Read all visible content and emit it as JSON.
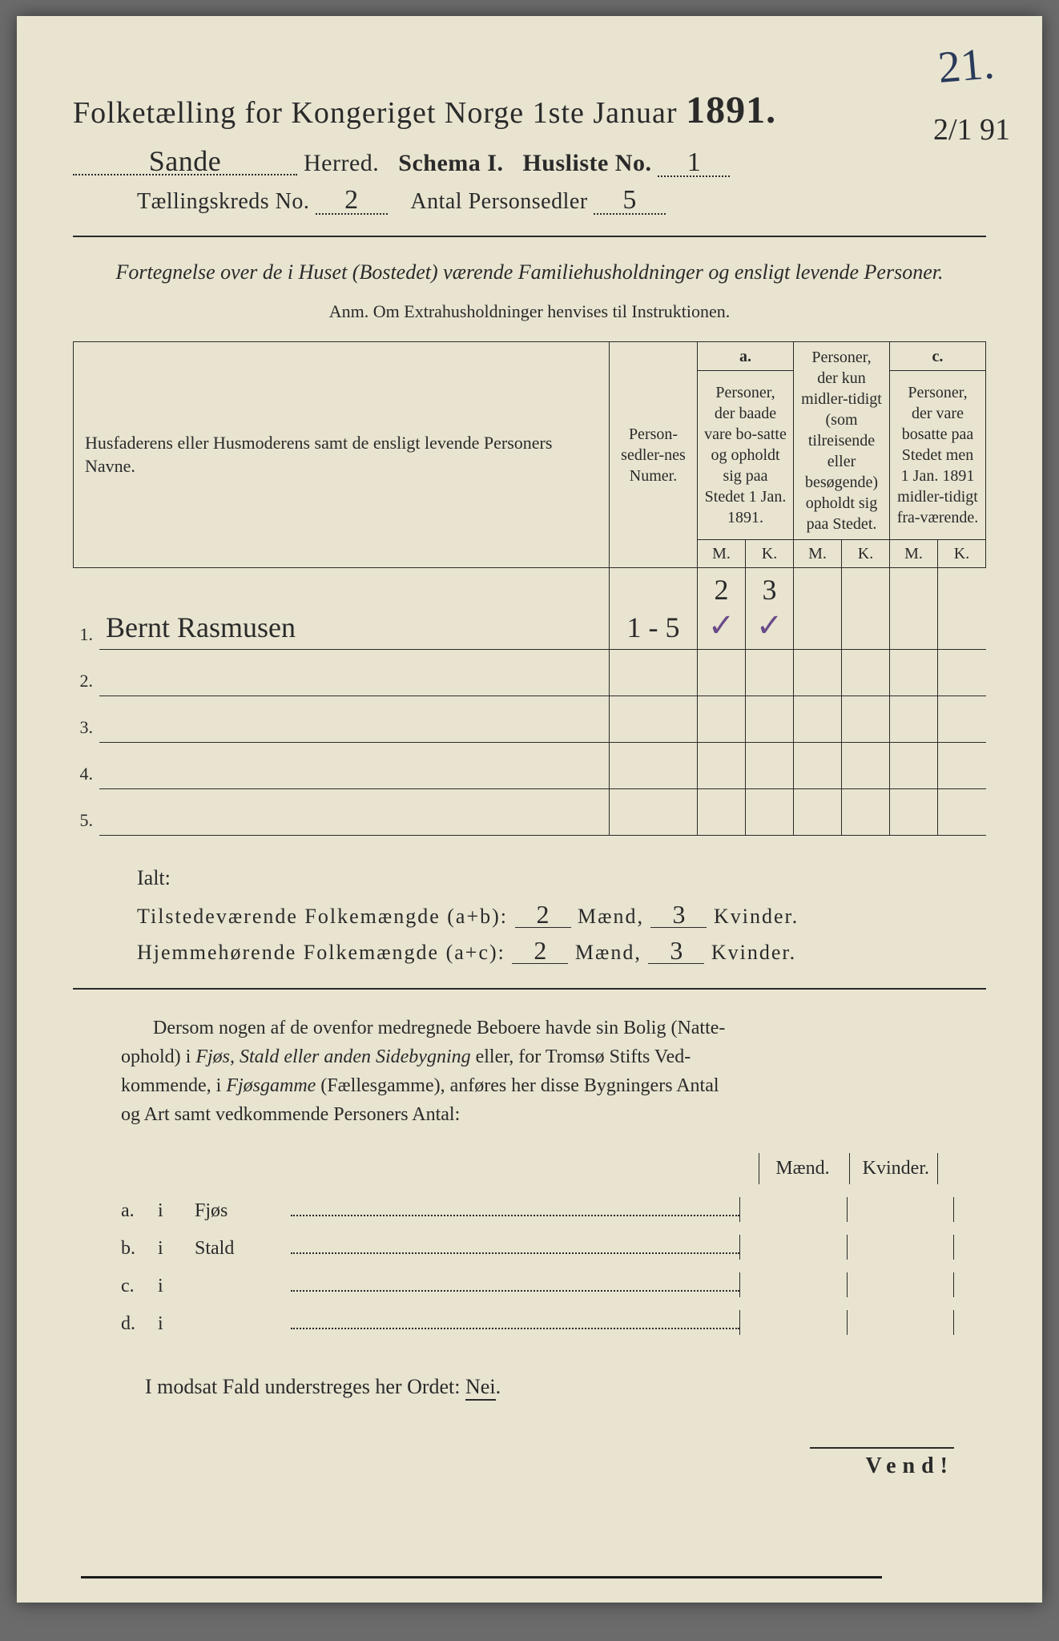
{
  "corner_number": "21.",
  "corner_date": "2/1 91",
  "title": {
    "main": "Folketælling for Kongeriget Norge 1ste Januar",
    "year": "1891."
  },
  "header": {
    "herred_value": "Sande",
    "herred_label": "Herred.",
    "schema_label": "Schema I.",
    "husliste_label": "Husliste No.",
    "husliste_value": "1",
    "kreds_label": "Tællingskreds No.",
    "kreds_value": "2",
    "sedler_label": "Antal Personsedler",
    "sedler_value": "5"
  },
  "intro": "Fortegnelse over de i Huset (Bostedet) værende Familiehusholdninger og ensligt levende Personer.",
  "anm": "Anm.  Om Extrahusholdninger henvises til Instruktionen.",
  "table": {
    "head_name": "Husfaderens eller Husmoderens samt de ensligt levende Personers Navne.",
    "head_num": "Person-sedler-nes Numer.",
    "head_a_top": "a.",
    "head_a": "Personer, der baade vare bo-satte og opholdt sig paa Stedet 1 Jan. 1891.",
    "head_b": "Personer, der kun midler-tidigt (som tilreisende eller besøgende) opholdt sig paa Stedet.",
    "head_c_top": "c.",
    "head_c": "Personer, der vare bosatte paa Stedet men 1 Jan. 1891 midler-tidigt fra-værende.",
    "mk_m": "M.",
    "mk_k": "K.",
    "rows": [
      {
        "n": "1.",
        "name": "Bernt Rasmusen",
        "num": "1 - 5",
        "am": "2",
        "ak": "3",
        "check_m": "✓",
        "check_k": "✓"
      },
      {
        "n": "2.",
        "name": "",
        "num": "",
        "am": "",
        "ak": ""
      },
      {
        "n": "3.",
        "name": "",
        "num": "",
        "am": "",
        "ak": ""
      },
      {
        "n": "4.",
        "name": "",
        "num": "",
        "am": "",
        "ak": ""
      },
      {
        "n": "5.",
        "name": "",
        "num": "",
        "am": "",
        "ak": ""
      }
    ]
  },
  "totals": {
    "ialt": "Ialt:",
    "row1_label": "Tilstedeværende Folkemængde (a+b):",
    "row2_label": "Hjemmehørende Folkemængde (a+c):",
    "maend": "Mænd,",
    "kvinder": "Kvinder.",
    "r1_m": "2",
    "r1_k": "3",
    "r2_m": "2",
    "r2_k": "3"
  },
  "para": {
    "line1": "Dersom nogen af de ovenfor medregnede Beboere havde sin Bolig (Natte-",
    "line2_a": "ophold) i ",
    "line2_b": "Fjøs, Stald eller anden Sidebygning",
    "line2_c": " eller, for Tromsø Stifts Ved-",
    "line3_a": "kommende, i ",
    "line3_b": "Fjøsgamme",
    "line3_c": " (Fællesgamme), anføres her disse Bygningers Antal",
    "line4": "og Art samt vedkommende Personers Antal:"
  },
  "buildings": {
    "maend": "Mænd.",
    "kvinder": "Kvinder.",
    "rows": [
      {
        "l": "a.",
        "i": "i",
        "n": "Fjøs"
      },
      {
        "l": "b.",
        "i": "i",
        "n": "Stald"
      },
      {
        "l": "c.",
        "i": "i",
        "n": ""
      },
      {
        "l": "d.",
        "i": "i",
        "n": ""
      }
    ]
  },
  "nei_line_a": "I modsat Fald understreges her Ordet: ",
  "nei_word": "Nei",
  "vend": "Vend!"
}
